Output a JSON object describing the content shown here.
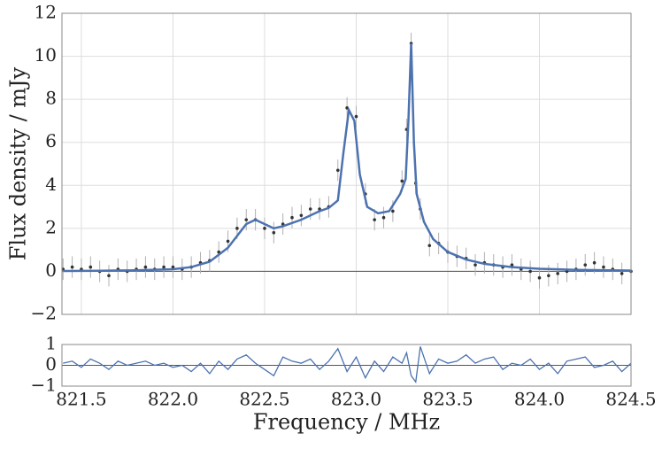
{
  "chart_data": [
    {
      "type": "line",
      "ylabel": "Flux density / mJy",
      "xlim": [
        821.394,
        824.5
      ],
      "ylim": [
        -2,
        12
      ],
      "xticks": [
        821.5,
        822,
        822.5,
        823,
        823.5,
        824,
        824.5
      ],
      "yticks": [
        {
          "value": -2,
          "label": "−2"
        },
        0,
        2,
        4,
        6,
        8,
        10,
        12
      ],
      "grid": true,
      "series": [
        {
          "style": "errorbar",
          "color": "#333333",
          "error": 0.5,
          "x": [
            821.4,
            821.45,
            821.5,
            821.55,
            821.6,
            821.65,
            821.7,
            821.75,
            821.8,
            821.85,
            821.9,
            821.95,
            822.0,
            822.05,
            822.1,
            822.15,
            822.2,
            822.25,
            822.3,
            822.35,
            822.4,
            822.45,
            822.5,
            822.55,
            822.6,
            822.65,
            822.7,
            822.75,
            822.8,
            822.85,
            822.9,
            822.95,
            823.0,
            823.05,
            823.1,
            823.15,
            823.2,
            823.25,
            823.275,
            823.3,
            823.325,
            823.35,
            823.4,
            823.45,
            823.5,
            823.55,
            823.6,
            823.65,
            823.7,
            823.75,
            823.8,
            823.85,
            823.9,
            823.95,
            824.0,
            824.05,
            824.1,
            824.15,
            824.2,
            824.25,
            824.3,
            824.35,
            824.4,
            824.45,
            824.5
          ],
          "values": [
            0.1,
            0.2,
            0.1,
            0.2,
            0.0,
            -0.2,
            0.1,
            0.0,
            0.1,
            0.2,
            0.1,
            0.2,
            0.2,
            0.1,
            0.2,
            0.4,
            0.5,
            0.9,
            1.4,
            2.0,
            2.4,
            2.4,
            2.0,
            1.8,
            2.2,
            2.5,
            2.6,
            2.9,
            2.9,
            3.0,
            4.7,
            7.6,
            7.2,
            3.6,
            2.4,
            2.5,
            2.8,
            4.2,
            6.6,
            10.6,
            4.1,
            2.9,
            1.2,
            1.3,
            0.9,
            0.7,
            0.6,
            0.3,
            0.4,
            0.3,
            0.2,
            0.3,
            0.1,
            0.0,
            -0.3,
            -0.2,
            -0.1,
            0.0,
            0.1,
            0.3,
            0.4,
            0.2,
            0.1,
            -0.1,
            0.0
          ]
        },
        {
          "style": "line",
          "color": "#4c72b0",
          "x": [
            821.4,
            821.6,
            821.8,
            822.0,
            822.1,
            822.2,
            822.3,
            822.4,
            822.45,
            822.5,
            822.55,
            822.6,
            822.7,
            822.8,
            822.85,
            822.9,
            822.93,
            822.96,
            822.99,
            823.02,
            823.06,
            823.12,
            823.18,
            823.24,
            823.27,
            823.285,
            823.3,
            823.315,
            823.33,
            823.37,
            823.42,
            823.5,
            823.6,
            823.7,
            823.85,
            824.0,
            824.2,
            824.5
          ],
          "values": [
            0.02,
            0.03,
            0.05,
            0.1,
            0.2,
            0.45,
            1.1,
            2.2,
            2.4,
            2.2,
            2.0,
            2.1,
            2.4,
            2.8,
            2.95,
            3.3,
            5.5,
            7.5,
            7.0,
            4.5,
            3.0,
            2.7,
            2.8,
            3.6,
            4.3,
            7,
            10.6,
            6,
            3.6,
            2.3,
            1.5,
            0.9,
            0.55,
            0.35,
            0.2,
            0.12,
            0.07,
            0.04
          ]
        }
      ]
    },
    {
      "type": "line",
      "xlabel": "Frequency / MHz",
      "xlim": [
        821.394,
        824.5
      ],
      "ylim": [
        -1,
        1
      ],
      "xticks": [
        821.5,
        {
          "value": 822,
          "label": "822.0"
        },
        822.5,
        {
          "value": 823,
          "label": "823.0"
        },
        823.5,
        {
          "value": 824,
          "label": "824.0"
        },
        824.5
      ],
      "yticks": [
        {
          "value": -1,
          "label": "−1"
        },
        0,
        1
      ],
      "color": "#4c72b0",
      "x": [
        821.4,
        821.45,
        821.5,
        821.55,
        821.6,
        821.65,
        821.7,
        821.75,
        821.8,
        821.85,
        821.9,
        821.95,
        822.0,
        822.05,
        822.1,
        822.15,
        822.2,
        822.25,
        822.3,
        822.35,
        822.4,
        822.45,
        822.5,
        822.55,
        822.6,
        822.65,
        822.7,
        822.75,
        822.8,
        822.85,
        822.9,
        822.95,
        823.0,
        823.05,
        823.1,
        823.15,
        823.2,
        823.25,
        823.275,
        823.3,
        823.325,
        823.35,
        823.4,
        823.45,
        823.5,
        823.55,
        823.6,
        823.65,
        823.7,
        823.75,
        823.8,
        823.85,
        823.9,
        823.95,
        824.0,
        824.05,
        824.1,
        824.15,
        824.2,
        824.25,
        824.3,
        824.35,
        824.4,
        824.45,
        824.5
      ],
      "values": [
        0.1,
        0.2,
        -0.1,
        0.3,
        0.1,
        -0.2,
        0.2,
        0.0,
        0.1,
        0.2,
        0.0,
        0.1,
        -0.1,
        0.0,
        -0.3,
        0.1,
        -0.4,
        0.2,
        -0.2,
        0.3,
        0.5,
        0.1,
        -0.2,
        -0.5,
        0.4,
        0.2,
        0.1,
        0.3,
        -0.2,
        0.2,
        0.8,
        -0.3,
        0.4,
        -0.6,
        0.2,
        -0.3,
        0.4,
        0.1,
        0.6,
        -0.5,
        -0.8,
        0.9,
        -0.4,
        0.3,
        0.1,
        0.2,
        0.5,
        0.1,
        0.3,
        0.4,
        -0.2,
        0.1,
        0.0,
        0.3,
        -0.2,
        0.1,
        -0.4,
        0.2,
        0.3,
        0.4,
        -0.1,
        0.0,
        0.2,
        -0.3,
        0.1
      ]
    }
  ]
}
